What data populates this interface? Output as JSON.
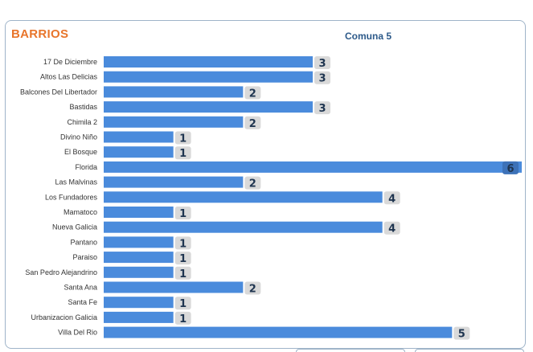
{
  "panel": {
    "title": "BARRIOS",
    "subtitle": "Comuna 5"
  },
  "colors": {
    "bar": "#4a8bdc",
    "title": "#e8752b",
    "subtitle": "#2d5a8a",
    "value_badge": "#d9d9d9"
  },
  "chart_data": {
    "type": "bar",
    "orientation": "horizontal",
    "categories": [
      "17 De Diciembre",
      "Altos Las Delicias",
      "Balcones Del Libertador",
      "Bastidas",
      "Chimila 2",
      "Divino Niño",
      "El Bosque",
      "Florida",
      "Las Malvinas",
      "Los Fundadores",
      "Mamatoco",
      "Nueva Galicia",
      "Pantano",
      "Paraiso",
      "San Pedro Alejandrino",
      "Santa Ana",
      "Santa Fe",
      "Urbanizacion Galicia",
      "Villa Del Rio"
    ],
    "values": [
      3,
      3,
      2,
      3,
      2,
      1,
      1,
      6,
      2,
      4,
      1,
      4,
      1,
      1,
      1,
      2,
      1,
      1,
      5
    ],
    "xlim": [
      0,
      6
    ],
    "grid": false,
    "data_labels": true
  }
}
